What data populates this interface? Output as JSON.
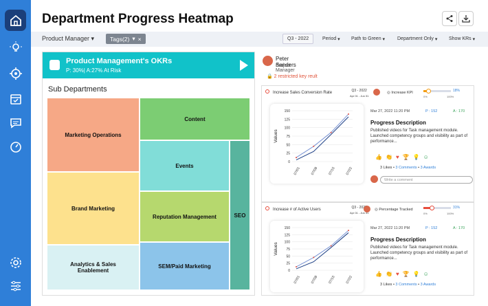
{
  "page": {
    "title": "Department Progress Heatmap"
  },
  "sidebar": {
    "items": [
      {
        "icon": "home-icon",
        "active": true
      },
      {
        "icon": "lightbulb-icon"
      },
      {
        "icon": "target-icon"
      },
      {
        "icon": "calendar-check-icon"
      },
      {
        "icon": "chat-icon"
      },
      {
        "icon": "gauge-icon"
      },
      {
        "icon": "settings-icon"
      },
      {
        "icon": "sliders-icon"
      }
    ]
  },
  "filters": {
    "product_manager": "Product Manager",
    "tags": "Tags(2)",
    "tags_close": "×",
    "quarter": "Q3 - 2022",
    "period": "Period",
    "path_to_green": "Path to Green",
    "department_only": "Department Only",
    "show_krs": "Show KRs"
  },
  "okr": {
    "name": "Product Management's OKRs",
    "stats": "P: 30%| A:27%  At Risk"
  },
  "heatmap": {
    "title": "Sub Departments",
    "tiles": [
      {
        "label": "Marketing Operations",
        "color": "#f6a886"
      },
      {
        "label": "Brand Marketing",
        "color": "#fde18d"
      },
      {
        "label": "Analytics & Sales Enablement",
        "color": "#d9f1f3"
      },
      {
        "label": "Content",
        "color": "#7ccd73"
      },
      {
        "label": "Events",
        "color": "#81ddd8"
      },
      {
        "label": "Reputation Management",
        "color": "#b6d86e"
      },
      {
        "label": "SEM/Paid Marketing",
        "color": "#8cc4ea"
      },
      {
        "label": "SEO",
        "color": "#58b49e"
      }
    ]
  },
  "user": {
    "name": "Peter Sanders",
    "role": "Project Manager",
    "restricted": "2 restricted key reult"
  },
  "cards": [
    {
      "kr_title": "Increase Sales Conversion Rate",
      "quarter": "Q3 - 2022",
      "dates": "Apr 01 - Jun 31",
      "kr_type": "Increase KPI",
      "progress": 0.18,
      "progress_label": "18%",
      "progress_start": "0%",
      "progress_end": "100%",
      "bar_color": "#f39c12",
      "date": "Mar 27, 2022 11:20 PM",
      "p": "P : 152",
      "a": "A : 170",
      "pd_title": "Progress Description",
      "pd_text": "Published videos for Task management module. Launched competency groups and visibility as part of performance...",
      "likes": "3 Likes",
      "comments": "3 Comments",
      "awards": "3 Awards",
      "comment_placeholder": "Write a comment"
    },
    {
      "kr_title": "Increase # of Active Users",
      "quarter": "Q3 - 2022",
      "dates": "Apr 01 - Jun 31",
      "kr_type": "Percentage Tracked",
      "progress": 0.31,
      "progress_label": "31%",
      "progress_start": "0%",
      "progress_end": "100%",
      "bar_color": "#e74c3c",
      "date": "Mar 27, 2022 11:20 PM",
      "p": "P : 152",
      "a": "A : 170",
      "pd_title": "Progress Description",
      "pd_text": "Published videos for Task management module. Launched competency groups and visibility as part of performance...",
      "likes": "3 Likes",
      "comments": "3 Comments",
      "awards": "3 Awards"
    }
  ],
  "chart_data": [
    {
      "type": "line",
      "x": [
        "07/01",
        "07/08",
        "07/15",
        "07/22"
      ],
      "ylabel": "Values",
      "yticks": [
        0,
        25,
        50,
        75,
        100,
        125,
        150
      ],
      "series": [
        {
          "values": [
            5,
            30,
            80,
            132
          ]
        },
        {
          "values": [
            12,
            45,
            86,
            140
          ]
        }
      ]
    },
    {
      "type": "line",
      "x": [
        "07/01",
        "07/08",
        "07/15",
        "07/22"
      ],
      "ylabel": "Values",
      "yticks": [
        0,
        25,
        50,
        75,
        100,
        125,
        150
      ],
      "series": [
        {
          "values": [
            5,
            30,
            80,
            132
          ]
        },
        {
          "values": [
            12,
            45,
            86,
            140
          ]
        }
      ]
    }
  ]
}
